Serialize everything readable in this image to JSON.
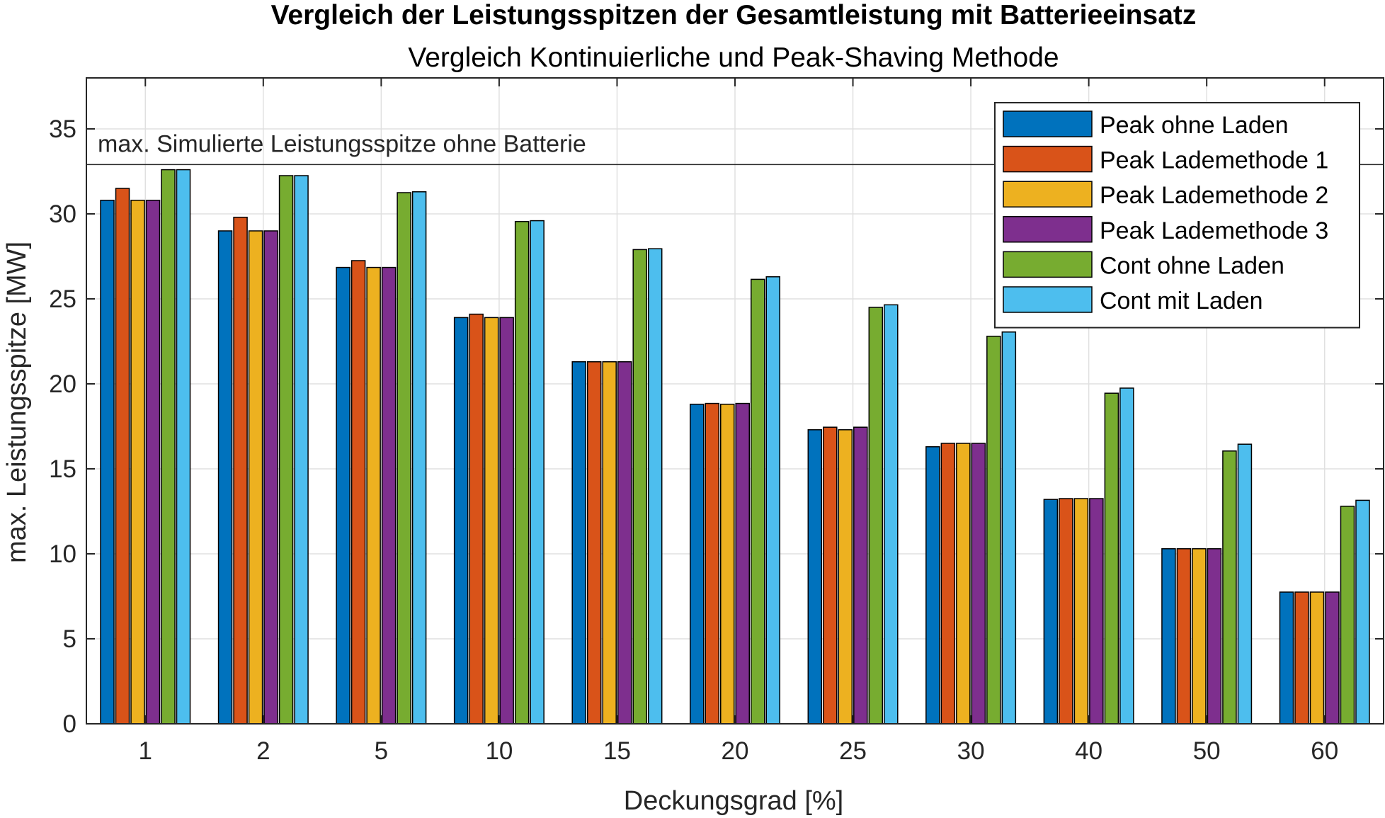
{
  "chart_data": {
    "type": "bar",
    "title": "Vergleich der Leistungsspitzen der Gesamtleistung mit Batterieeinsatz",
    "subtitle": "Vergleich Kontinuierliche und Peak-Shaving Methode",
    "xlabel": "Deckungsgrad [%]",
    "ylabel": "max. Leistungsspitze [MW]",
    "ylim": [
      0,
      38
    ],
    "yticks": [
      "0",
      "5",
      "10",
      "15",
      "20",
      "25",
      "30",
      "35"
    ],
    "grid": true,
    "legend_position": "top-right",
    "categories": [
      "1",
      "2",
      "5",
      "10",
      "15",
      "20",
      "25",
      "30",
      "40",
      "50",
      "60"
    ],
    "reference_line": {
      "value": 32.9,
      "label": "max. Simulierte Leistungsspitze ohne Batterie"
    },
    "series": [
      {
        "name": "Peak ohne Laden",
        "color": "#0072BD",
        "values": [
          30.8,
          29.0,
          26.85,
          23.9,
          21.3,
          18.8,
          17.3,
          16.3,
          13.2,
          10.3,
          7.75
        ]
      },
      {
        "name": "Peak Lademethode 1",
        "color": "#D95319",
        "values": [
          31.5,
          29.8,
          27.25,
          24.1,
          21.3,
          18.85,
          17.45,
          16.5,
          13.25,
          10.3,
          7.75
        ]
      },
      {
        "name": "Peak Lademethode 2",
        "color": "#EDB120",
        "values": [
          30.8,
          29.0,
          26.85,
          23.9,
          21.3,
          18.8,
          17.3,
          16.5,
          13.25,
          10.3,
          7.75
        ]
      },
      {
        "name": "Peak Lademethode 3",
        "color": "#7E2F8E",
        "values": [
          30.8,
          29.0,
          26.85,
          23.9,
          21.3,
          18.85,
          17.45,
          16.5,
          13.25,
          10.3,
          7.75
        ]
      },
      {
        "name": "Cont ohne Laden",
        "color": "#77AC30",
        "values": [
          32.6,
          32.25,
          31.25,
          29.55,
          27.9,
          26.15,
          24.5,
          22.8,
          19.45,
          16.05,
          12.8
        ]
      },
      {
        "name": "Cont mit Laden",
        "color": "#4DBEEE",
        "values": [
          32.6,
          32.25,
          31.3,
          29.6,
          27.95,
          26.3,
          24.65,
          23.05,
          19.75,
          16.45,
          13.15
        ]
      }
    ]
  }
}
